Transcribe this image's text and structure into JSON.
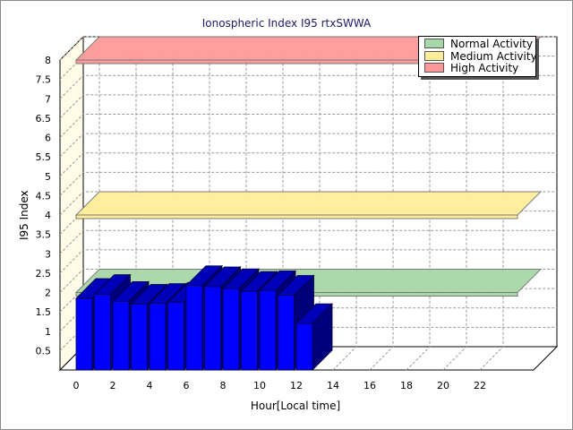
{
  "chart_data": {
    "type": "bar",
    "title": "Ionospheric Index I95 rtxSWWA",
    "xlabel": "Hour[Local time]",
    "ylabel": "I95 Index",
    "xlim": [
      0,
      24
    ],
    "ylim": [
      0,
      8
    ],
    "x_ticks": [
      "0",
      "2",
      "4",
      "6",
      "8",
      "10",
      "12",
      "14",
      "16",
      "18",
      "20",
      "22"
    ],
    "y_ticks": [
      "0.5",
      "1",
      "1.5",
      "2",
      "2.5",
      "3",
      "3.5",
      "4",
      "4.5",
      "5",
      "5.5",
      "6",
      "6.5",
      "7",
      "7.5",
      "8"
    ],
    "grid": true,
    "legend_position": "top-right",
    "series": [
      {
        "name": "I95",
        "color": "#0000ff",
        "x": [
          0,
          1,
          2,
          3,
          4,
          5,
          6,
          7,
          8,
          9,
          10,
          11,
          12
        ],
        "values": [
          1.85,
          1.95,
          1.77,
          1.7,
          1.72,
          1.75,
          2.18,
          2.15,
          2.1,
          2.03,
          2.05,
          1.93,
          1.2
        ]
      }
    ],
    "bands": [
      {
        "name": "Normal Activity",
        "level": 2.0,
        "color": "#a8d8a8"
      },
      {
        "name": "Medium Activity",
        "level": 4.0,
        "color": "#ffee99"
      },
      {
        "name": "High Activity",
        "level": 8.0,
        "color": "#ff9999"
      }
    ]
  }
}
